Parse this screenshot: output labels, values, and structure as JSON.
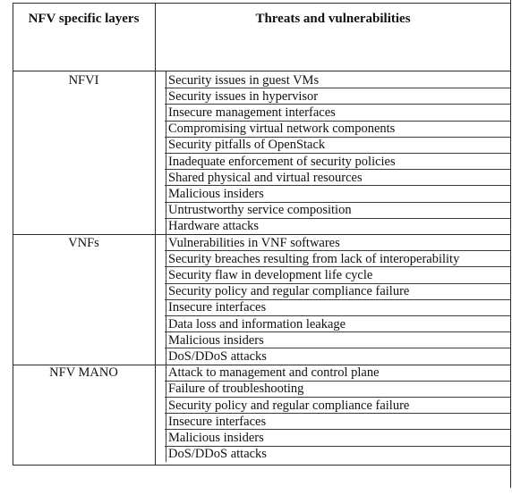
{
  "table": {
    "headers": {
      "layers": "NFV specific layers",
      "threats": "Threats and vulnerabilities"
    },
    "groups": [
      {
        "layer": "NFVI",
        "threats": [
          "Security issues in guest VMs",
          "Security issues in hypervisor",
          "Insecure management interfaces",
          "Compromising virtual network components",
          "Security pitfalls of OpenStack",
          "Inadequate enforcement of security policies",
          "Shared physical and virtual resources",
          "Malicious insiders",
          "Untrustworthy service composition",
          "Hardware attacks"
        ]
      },
      {
        "layer": "VNFs",
        "threats": [
          "Vulnerabilities in VNF softwares",
          "Security breaches resulting from lack of interoperability",
          "Security flaw in development life cycle",
          "Security policy and regular compliance failure",
          "Insecure interfaces",
          "Data loss and information leakage",
          "Malicious insiders",
          "DoS/DDoS attacks"
        ]
      },
      {
        "layer": "NFV MANO",
        "threats": [
          "Attack to management and control plane",
          "Failure of troubleshooting",
          "Security policy and regular compliance failure",
          "Insecure interfaces",
          "Malicious insiders",
          "DoS/DDoS attacks"
        ]
      }
    ]
  }
}
